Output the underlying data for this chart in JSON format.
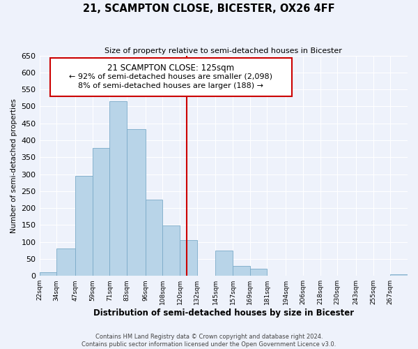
{
  "title": "21, SCAMPTON CLOSE, BICESTER, OX26 4FF",
  "subtitle": "Size of property relative to semi-detached houses in Bicester",
  "xlabel": "Distribution of semi-detached houses by size in Bicester",
  "ylabel": "Number of semi-detached properties",
  "bar_edges": [
    22,
    34,
    47,
    59,
    71,
    83,
    96,
    108,
    120,
    132,
    145,
    157,
    169,
    181,
    194,
    206,
    218,
    230,
    243,
    255,
    267,
    279
  ],
  "bar_heights": [
    10,
    80,
    295,
    378,
    515,
    433,
    225,
    148,
    105,
    0,
    75,
    30,
    22,
    0,
    0,
    0,
    0,
    0,
    0,
    0,
    5
  ],
  "bar_color": "#b8d4e8",
  "bar_edge_color": "#7aaac8",
  "property_line_x": 125,
  "property_line_color": "#cc0000",
  "ylim": [
    0,
    650
  ],
  "yticks": [
    0,
    50,
    100,
    150,
    200,
    250,
    300,
    350,
    400,
    450,
    500,
    550,
    600,
    650
  ],
  "annotation_title": "21 SCAMPTON CLOSE: 125sqm",
  "annotation_line1": "← 92% of semi-detached houses are smaller (2,098)",
  "annotation_line2": "8% of semi-detached houses are larger (188) →",
  "annotation_box_color": "#cc0000",
  "footer_line1": "Contains HM Land Registry data © Crown copyright and database right 2024.",
  "footer_line2": "Contains public sector information licensed under the Open Government Licence v3.0.",
  "background_color": "#eef2fb",
  "grid_color": "#ffffff",
  "tick_labels": [
    "22sqm",
    "34sqm",
    "47sqm",
    "59sqm",
    "71sqm",
    "83sqm",
    "96sqm",
    "108sqm",
    "120sqm",
    "132sqm",
    "145sqm",
    "157sqm",
    "169sqm",
    "181sqm",
    "194sqm",
    "206sqm",
    "218sqm",
    "230sqm",
    "243sqm",
    "255sqm",
    "267sqm"
  ]
}
